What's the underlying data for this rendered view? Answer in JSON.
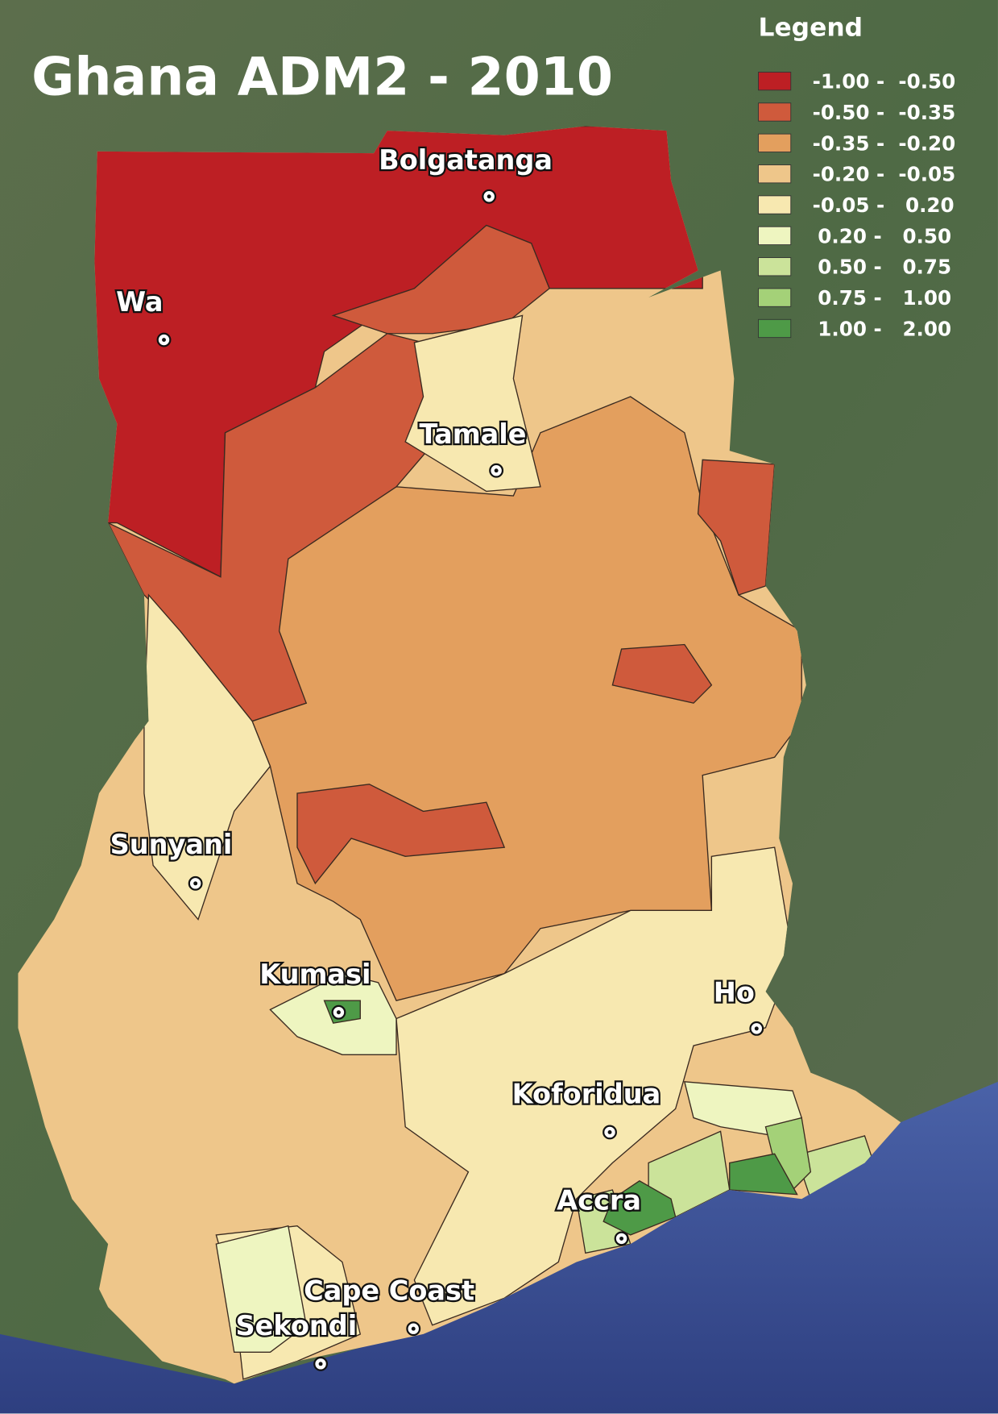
{
  "title": "Ghana ADM2 - 2010",
  "legend": {
    "title": "Legend",
    "items": [
      {
        "label": "-1.00 -  -0.50",
        "color": "#bd1f24"
      },
      {
        "label": "-0.50 -  -0.35",
        "color": "#cf5a3c"
      },
      {
        "label": "-0.35 -  -0.20",
        "color": "#e39f5e"
      },
      {
        "label": "-0.20 -  -0.05",
        "color": "#eec68a"
      },
      {
        "label": "-0.05 -   0.20",
        "color": "#f7e8b0"
      },
      {
        "label": "0.20 -   0.50",
        "color": "#eef5c0"
      },
      {
        "label": "0.50 -   0.75",
        "color": "#cbe39a"
      },
      {
        "label": "0.75 -   1.00",
        "color": "#a4d178"
      },
      {
        "label": "1.00 -   2.00",
        "color": "#4e9a47"
      }
    ]
  },
  "cities": [
    "Bolgatanga",
    "Wa",
    "Tamale",
    "Sunyani",
    "Kumasi",
    "Ho",
    "Koforidua",
    "Accra",
    "Cape Coast",
    "Sekondi"
  ]
}
